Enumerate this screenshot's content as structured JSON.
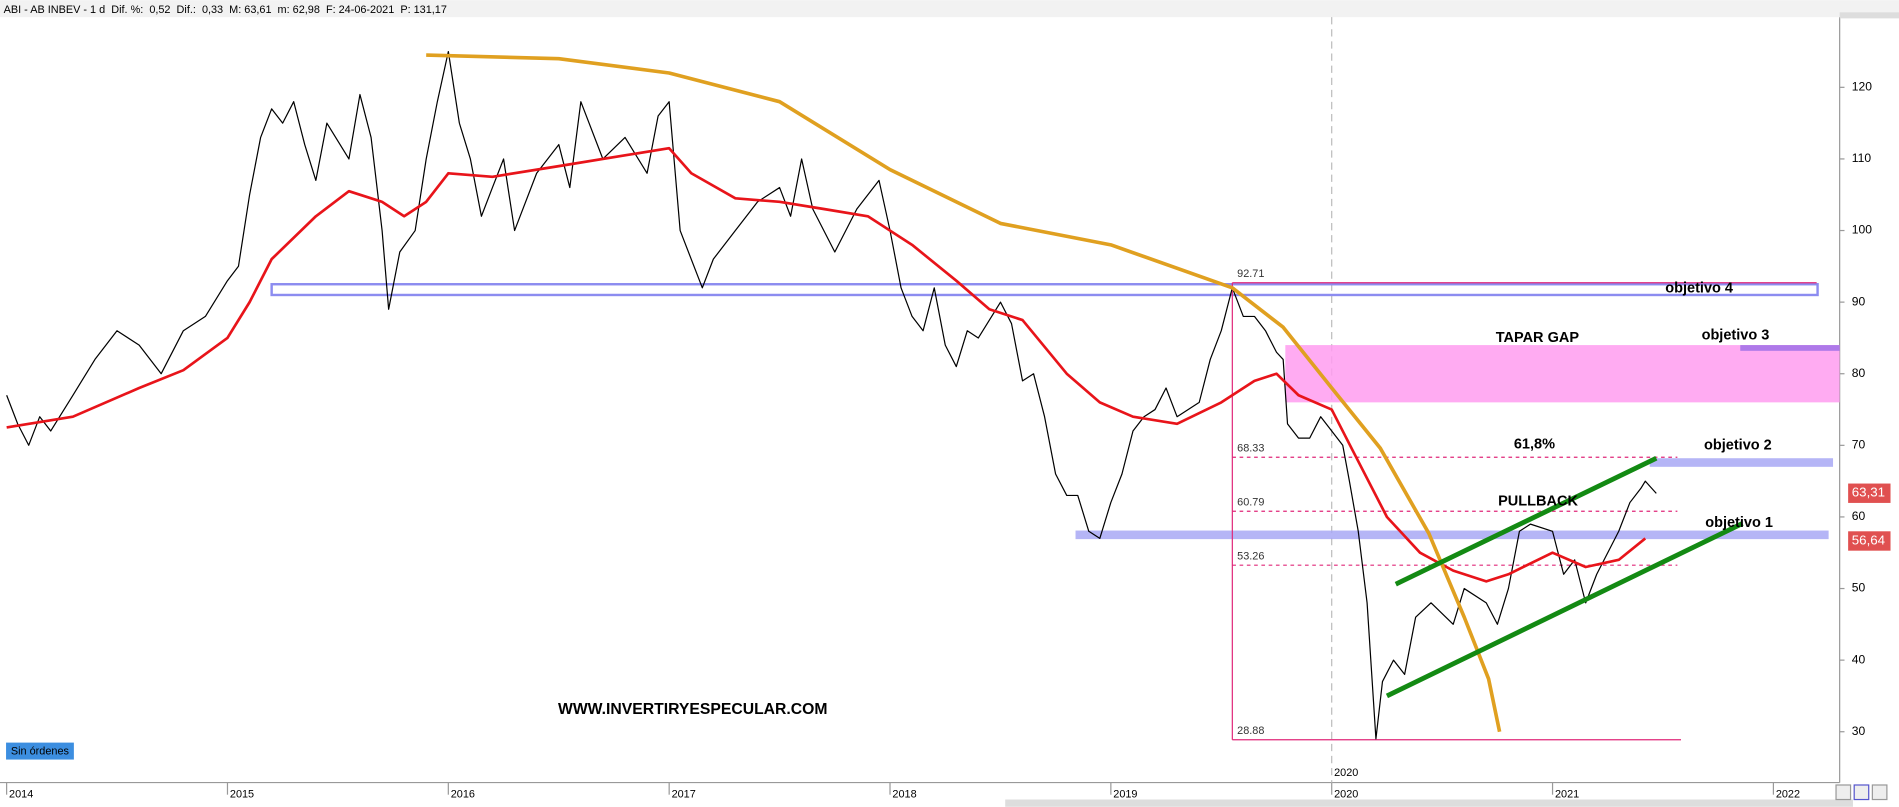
{
  "header": {
    "parts": [
      "ABI - AB INBEV -  1 d",
      "Dif. %:",
      "0,52",
      "Dif.:",
      "0,33",
      "M: 63,61",
      "m: 62,98",
      "F: 24-06-2021",
      "P: 131,17"
    ]
  },
  "button": "Sin órdenes",
  "watermark": "WWW.INVERTIRYESPECULAR.COM",
  "chart_data": {
    "type": "line",
    "xlim": [
      2013.97,
      2022.3
    ],
    "xticks": [
      2014,
      2015,
      2016,
      2017,
      2018,
      2019,
      2020,
      2021,
      2022
    ],
    "ylim": [
      22.9,
      129.8
    ],
    "yticks": [
      30,
      40,
      50,
      60,
      70,
      80,
      90,
      100,
      110,
      120
    ],
    "series": [
      {
        "color": "#000000",
        "x": [
          2014.0,
          2014.05,
          2014.1,
          2014.15,
          2014.2,
          2014.3,
          2014.4,
          2014.5,
          2014.6,
          2014.7,
          2014.8,
          2014.9,
          2015.0,
          2015.05,
          2015.1,
          2015.15,
          2015.2,
          2015.25,
          2015.3,
          2015.35,
          2015.4,
          2015.45,
          2015.55,
          2015.6,
          2015.65,
          2015.7,
          2015.73,
          2015.78,
          2015.85,
          2015.9,
          2015.95,
          2016.0,
          2016.05,
          2016.1,
          2016.15,
          2016.2,
          2016.25,
          2016.3,
          2016.4,
          2016.5,
          2016.55,
          2016.6,
          2016.7,
          2016.8,
          2016.9,
          2016.95,
          2017.0,
          2017.05,
          2017.15,
          2017.2,
          2017.3,
          2017.4,
          2017.5,
          2017.55,
          2017.6,
          2017.65,
          2017.75,
          2017.85,
          2017.95,
          2018.0,
          2018.05,
          2018.1,
          2018.15,
          2018.2,
          2018.25,
          2018.3,
          2018.35,
          2018.4,
          2018.5,
          2018.55,
          2018.6,
          2018.65,
          2018.7,
          2018.75,
          2018.8,
          2018.85,
          2018.9,
          2018.95,
          2019.0,
          2019.05,
          2019.1,
          2019.15,
          2019.2,
          2019.25,
          2019.3,
          2019.4,
          2019.45,
          2019.5,
          2019.55,
          2019.6,
          2019.65,
          2019.7,
          2019.75,
          2019.78,
          2019.8,
          2019.85,
          2019.9,
          2019.95,
          2020.0,
          2020.05,
          2020.08,
          2020.12,
          2020.16,
          2020.2,
          2020.23,
          2020.28,
          2020.33,
          2020.38,
          2020.45,
          2020.55,
          2020.6,
          2020.7,
          2020.75,
          2020.8,
          2020.85,
          2020.9,
          2021.0,
          2021.05,
          2021.1,
          2021.15,
          2021.2,
          2021.3,
          2021.35,
          2021.4,
          2021.42,
          2021.47
        ],
        "values": [
          77,
          73,
          70,
          74,
          72,
          77,
          82,
          86,
          84,
          80,
          86,
          88,
          93,
          95,
          105,
          113,
          117,
          115,
          118,
          112,
          107,
          115,
          110,
          119,
          113,
          100,
          89,
          97,
          100,
          110,
          118,
          125,
          115,
          110,
          102,
          106,
          110,
          100,
          108,
          112,
          106,
          118,
          110,
          113,
          108,
          116,
          118,
          100,
          92,
          96,
          100,
          104,
          106,
          102,
          110,
          103,
          97,
          103,
          107,
          100,
          92,
          88,
          86,
          92,
          84,
          81,
          86,
          85,
          90,
          87,
          79,
          80,
          74,
          66,
          63,
          63,
          58,
          57,
          62,
          66,
          72,
          74,
          75,
          78,
          74,
          76,
          82,
          86,
          92,
          88,
          88,
          86,
          83,
          82,
          73,
          71,
          71,
          74,
          72,
          70,
          65,
          58,
          48,
          29,
          37,
          40,
          38,
          46,
          48,
          45,
          50,
          48,
          45,
          50,
          58,
          59,
          58,
          52,
          54,
          48,
          52,
          58,
          62,
          64,
          65,
          63.3
        ]
      },
      {
        "color": "#e8141a",
        "x": [
          2014.0,
          2014.3,
          2014.6,
          2014.8,
          2015.0,
          2015.1,
          2015.2,
          2015.4,
          2015.55,
          2015.7,
          2015.8,
          2015.9,
          2016.0,
          2016.2,
          2016.5,
          2016.8,
          2017.0,
          2017.1,
          2017.3,
          2017.5,
          2017.7,
          2017.9,
          2018.1,
          2018.3,
          2018.45,
          2018.6,
          2018.8,
          2018.95,
          2019.1,
          2019.3,
          2019.5,
          2019.65,
          2019.75,
          2019.85,
          2020.0,
          2020.1,
          2020.25,
          2020.4,
          2020.55,
          2020.7,
          2020.8,
          2021.0,
          2021.15,
          2021.3,
          2021.42
        ],
        "values": [
          72.5,
          74,
          78,
          80.5,
          85,
          90,
          96,
          102,
          105.5,
          104,
          102,
          104,
          108,
          107.5,
          109,
          110.5,
          111.5,
          108,
          104.5,
          104,
          103,
          102,
          98,
          93,
          89,
          87.5,
          80,
          76,
          74,
          73,
          76,
          79,
          80,
          77,
          75,
          69,
          60,
          55,
          52.5,
          51,
          52,
          55,
          53,
          54,
          57
        ]
      },
      {
        "color": "#e0a020",
        "x": [
          2015.9,
          2016.5,
          2017.0,
          2017.5,
          2018.0,
          2018.5,
          2019.0,
          2019.55,
          2019.78,
          2020.0,
          2020.22,
          2020.44,
          2020.6,
          2020.71,
          2020.76
        ],
        "values": [
          124.5,
          124,
          122,
          118,
          108.5,
          101,
          98,
          92,
          86.5,
          78,
          69.6,
          57.7,
          46,
          37.4,
          30
        ]
      },
      {
        "color": "#138a13",
        "x": [
          2020.29,
          2021.47
        ],
        "values": [
          50.6,
          68.2
        ]
      },
      {
        "color": "#138a13",
        "x": [
          2020.25,
          2021.86
        ],
        "values": [
          35,
          59.1
        ]
      }
    ],
    "zones": [
      {
        "from": 2015.2,
        "to": 2022.2,
        "low": 91,
        "high": 92.5,
        "color": "#8c8cf0",
        "outline": true
      },
      {
        "from": 2018.84,
        "to": 2022.25,
        "low": 56.9,
        "high": 58.1,
        "color": "#a8a8f4",
        "outline": false
      },
      {
        "from": 2019.79,
        "to": 2022.3,
        "low": 76,
        "high": 84,
        "color": "#ff9cf0",
        "outline": false
      },
      {
        "from": 2021.85,
        "to": 2022.3,
        "low": 83.2,
        "high": 84,
        "color": "#a070e8",
        "outline": false
      },
      {
        "from": 2021.44,
        "to": 2022.27,
        "low": 67,
        "high": 68.2,
        "color": "#a8a8f4",
        "outline": false
      }
    ],
    "fib": {
      "from": 2019.55,
      "levels": [
        92.71,
        68.33,
        60.79,
        53.26,
        28.88
      ],
      "color": "#e0287a"
    },
    "annotations": [
      "objetivo 4",
      "TAPAR GAP",
      "objetivo 3",
      "61,8%",
      "objetivo 2",
      "PULLBACK",
      "objetivo 1"
    ],
    "price_labels": [
      {
        "value": 63.31,
        "label": "63,31"
      },
      {
        "value": 56.64,
        "label": "56,64"
      }
    ],
    "marker_year": 2020
  }
}
